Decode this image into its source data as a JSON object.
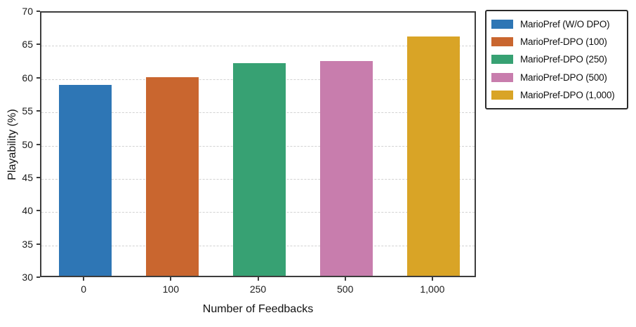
{
  "chart_data": {
    "type": "bar",
    "title": "",
    "xlabel": "Number of Feedbacks",
    "ylabel": "Playability (%)",
    "categories": [
      "0",
      "100",
      "250",
      "500",
      "1,000"
    ],
    "values": [
      58.9,
      60.1,
      62.2,
      62.5,
      66.2
    ],
    "ylim": [
      30,
      70
    ],
    "ytick_step": 5,
    "yticks": [
      30,
      35,
      40,
      45,
      50,
      55,
      60,
      65,
      70
    ],
    "grid": "horizontal-dashed",
    "legend_position": "outside-upper-right",
    "series_meta": [
      {
        "name": "MarioPref (W/O DPO)",
        "color": "#2e76b5"
      },
      {
        "name": "MarioPref-DPO (100)",
        "color": "#c9662f"
      },
      {
        "name": "MarioPref-DPO (250)",
        "color": "#37a173"
      },
      {
        "name": "MarioPref-DPO (500)",
        "color": "#c87dad"
      },
      {
        "name": "MarioPref-DPO (1,000)",
        "color": "#d9a426"
      }
    ],
    "colors": {
      "spine": "#3d3d3d",
      "grid": "#d2d2d2",
      "tick_text": "#1a1a1a",
      "background": "#ffffff"
    }
  }
}
